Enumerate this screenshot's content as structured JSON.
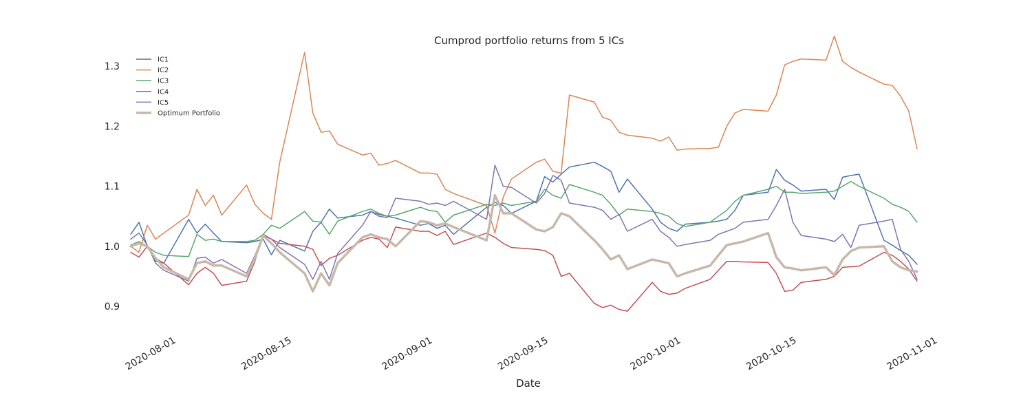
{
  "chart_data": {
    "type": "line",
    "title": "Cumprod portfolio returns from 5 ICs",
    "xlabel": "Date",
    "ylabel": "",
    "xlim": [
      "2020-07-27",
      "2020-10-31"
    ],
    "ylim": [
      0.86,
      1.37
    ],
    "x_ticks": [
      "2020-08-01",
      "2020-08-15",
      "2020-09-01",
      "2020-09-15",
      "2020-10-01",
      "2020-10-15",
      "2020-11-01"
    ],
    "y_ticks": [
      "0.9",
      "1.0",
      "1.1",
      "1.2",
      "1.3"
    ],
    "grid": false,
    "legend_position": "top-left",
    "x": [
      "2020-07-27",
      "2020-07-28",
      "2020-07-29",
      "2020-07-30",
      "2020-07-31",
      "2020-08-03",
      "2020-08-04",
      "2020-08-05",
      "2020-08-06",
      "2020-08-07",
      "2020-08-10",
      "2020-08-11",
      "2020-08-12",
      "2020-08-13",
      "2020-08-14",
      "2020-08-17",
      "2020-08-18",
      "2020-08-19",
      "2020-08-20",
      "2020-08-21",
      "2020-08-24",
      "2020-08-25",
      "2020-08-26",
      "2020-08-27",
      "2020-08-28",
      "2020-08-31",
      "2020-09-01",
      "2020-09-02",
      "2020-09-03",
      "2020-09-04",
      "2020-09-08",
      "2020-09-09",
      "2020-09-10",
      "2020-09-11",
      "2020-09-14",
      "2020-09-15",
      "2020-09-16",
      "2020-09-17",
      "2020-09-18",
      "2020-09-21",
      "2020-09-22",
      "2020-09-23",
      "2020-09-24",
      "2020-09-25",
      "2020-09-28",
      "2020-09-29",
      "2020-09-30",
      "2020-10-01",
      "2020-10-02",
      "2020-10-05",
      "2020-10-06",
      "2020-10-07",
      "2020-10-08",
      "2020-10-09",
      "2020-10-12",
      "2020-10-13",
      "2020-10-14",
      "2020-10-15",
      "2020-10-16",
      "2020-10-19",
      "2020-10-20",
      "2020-10-21",
      "2020-10-22",
      "2020-10-23",
      "2020-10-26",
      "2020-10-27",
      "2020-10-28",
      "2020-10-29",
      "2020-10-30"
    ],
    "series": [
      {
        "name": "IC1",
        "color": "#4c72b0",
        "width": 1.5,
        "values": [
          1.02,
          1.04,
          1.0,
          0.975,
          0.972,
          1.045,
          1.022,
          1.037,
          1.022,
          1.008,
          1.006,
          1.008,
          1.012,
          0.986,
          1.01,
          0.992,
          1.025,
          1.04,
          1.062,
          1.047,
          1.052,
          1.058,
          1.053,
          1.05,
          1.047,
          1.035,
          1.038,
          1.03,
          1.035,
          1.02,
          1.065,
          1.073,
          1.068,
          1.055,
          1.075,
          1.116,
          1.107,
          1.12,
          1.132,
          1.14,
          1.133,
          1.125,
          1.09,
          1.112,
          1.062,
          1.04,
          1.03,
          1.025,
          1.037,
          1.04,
          1.042,
          1.045,
          1.06,
          1.085,
          1.09,
          1.128,
          1.11,
          1.102,
          1.092,
          1.095,
          1.078,
          1.115,
          1.118,
          1.12,
          1.01,
          1.002,
          0.993,
          0.985,
          0.97
        ]
      },
      {
        "name": "IC2",
        "color": "#dd8452",
        "width": 1.5,
        "values": [
          1.0,
          0.99,
          1.035,
          1.012,
          1.022,
          1.052,
          1.095,
          1.068,
          1.085,
          1.052,
          1.102,
          1.07,
          1.055,
          1.045,
          1.14,
          1.323,
          1.222,
          1.19,
          1.192,
          1.17,
          1.152,
          1.155,
          1.135,
          1.138,
          1.143,
          1.122,
          1.122,
          1.12,
          1.095,
          1.088,
          1.068,
          1.022,
          1.082,
          1.112,
          1.14,
          1.145,
          1.125,
          1.122,
          1.252,
          1.24,
          1.215,
          1.21,
          1.19,
          1.185,
          1.18,
          1.175,
          1.182,
          1.16,
          1.162,
          1.163,
          1.165,
          1.2,
          1.222,
          1.228,
          1.225,
          1.252,
          1.302,
          1.308,
          1.312,
          1.31,
          1.35,
          1.308,
          1.298,
          1.29,
          1.27,
          1.268,
          1.25,
          1.225,
          1.162
        ]
      },
      {
        "name": "IC3",
        "color": "#55a868",
        "width": 1.5,
        "values": [
          1.002,
          1.008,
          1.0,
          0.99,
          0.985,
          0.983,
          1.02,
          1.01,
          1.012,
          1.008,
          1.008,
          1.01,
          1.02,
          1.035,
          1.03,
          1.058,
          1.042,
          1.04,
          1.02,
          1.042,
          1.058,
          1.062,
          1.055,
          1.05,
          1.052,
          1.065,
          1.06,
          1.058,
          1.04,
          1.052,
          1.07,
          1.068,
          1.072,
          1.068,
          1.075,
          1.095,
          1.085,
          1.08,
          1.103,
          1.09,
          1.085,
          1.07,
          1.052,
          1.062,
          1.058,
          1.055,
          1.05,
          1.038,
          1.033,
          1.04,
          1.05,
          1.06,
          1.075,
          1.085,
          1.095,
          1.1,
          1.09,
          1.09,
          1.088,
          1.09,
          1.092,
          1.1,
          1.108,
          1.1,
          1.08,
          1.07,
          1.065,
          1.058,
          1.04
        ]
      },
      {
        "name": "IC4",
        "color": "#c44e52",
        "width": 1.5,
        "values": [
          0.99,
          0.982,
          1.0,
          0.98,
          0.972,
          0.936,
          0.955,
          0.965,
          0.955,
          0.935,
          0.942,
          0.975,
          1.02,
          1.012,
          1.005,
          1.0,
          0.995,
          0.968,
          0.98,
          0.985,
          1.01,
          1.015,
          1.012,
          0.998,
          1.032,
          1.025,
          1.025,
          1.018,
          1.025,
          1.003,
          1.022,
          1.015,
          1.005,
          0.998,
          0.995,
          0.993,
          0.985,
          0.95,
          0.955,
          0.905,
          0.898,
          0.902,
          0.895,
          0.892,
          0.94,
          0.925,
          0.92,
          0.922,
          0.93,
          0.945,
          0.96,
          0.975,
          0.975,
          0.974,
          0.973,
          0.955,
          0.925,
          0.927,
          0.94,
          0.945,
          0.95,
          0.965,
          0.966,
          0.967,
          0.99,
          0.985,
          0.975,
          0.962,
          0.942
        ]
      },
      {
        "name": "IC5",
        "color": "#8172b3",
        "width": 1.5,
        "values": [
          1.012,
          1.022,
          1.002,
          0.972,
          0.96,
          0.942,
          0.98,
          0.982,
          0.972,
          0.978,
          0.955,
          0.985,
          1.018,
          1.012,
          0.998,
          0.97,
          0.945,
          0.975,
          0.945,
          0.988,
          1.035,
          1.058,
          1.05,
          1.048,
          1.08,
          1.075,
          1.07,
          1.072,
          1.068,
          1.075,
          1.045,
          1.135,
          1.1,
          1.098,
          1.072,
          1.088,
          1.118,
          1.11,
          1.072,
          1.065,
          1.06,
          1.045,
          1.053,
          1.025,
          1.045,
          1.025,
          1.015,
          1.0,
          1.003,
          1.01,
          1.02,
          1.025,
          1.03,
          1.04,
          1.045,
          1.068,
          1.095,
          1.04,
          1.018,
          1.012,
          1.008,
          1.02,
          0.998,
          1.035,
          1.042,
          1.045,
          0.995,
          0.975,
          0.945
        ]
      },
      {
        "name": "Optimum Portfolio",
        "color": "#c8b8aa",
        "width": 3.5,
        "values": [
          1.0,
          1.005,
          1.0,
          0.98,
          0.965,
          0.945,
          0.972,
          0.975,
          0.968,
          0.968,
          0.95,
          0.98,
          1.018,
          1.005,
          0.99,
          0.955,
          0.925,
          0.955,
          0.935,
          0.972,
          1.015,
          1.02,
          1.015,
          1.012,
          1.0,
          1.042,
          1.04,
          1.035,
          1.038,
          1.032,
          1.01,
          1.085,
          1.055,
          1.055,
          1.028,
          1.025,
          1.032,
          1.055,
          1.05,
          1.01,
          0.995,
          0.978,
          0.985,
          0.962,
          0.978,
          0.975,
          0.972,
          0.95,
          0.955,
          0.968,
          0.985,
          1.002,
          1.005,
          1.008,
          1.022,
          0.982,
          0.965,
          0.963,
          0.96,
          0.965,
          0.952,
          0.978,
          0.992,
          0.998,
          1.0,
          0.975,
          0.965,
          0.96,
          0.958
        ]
      }
    ]
  }
}
